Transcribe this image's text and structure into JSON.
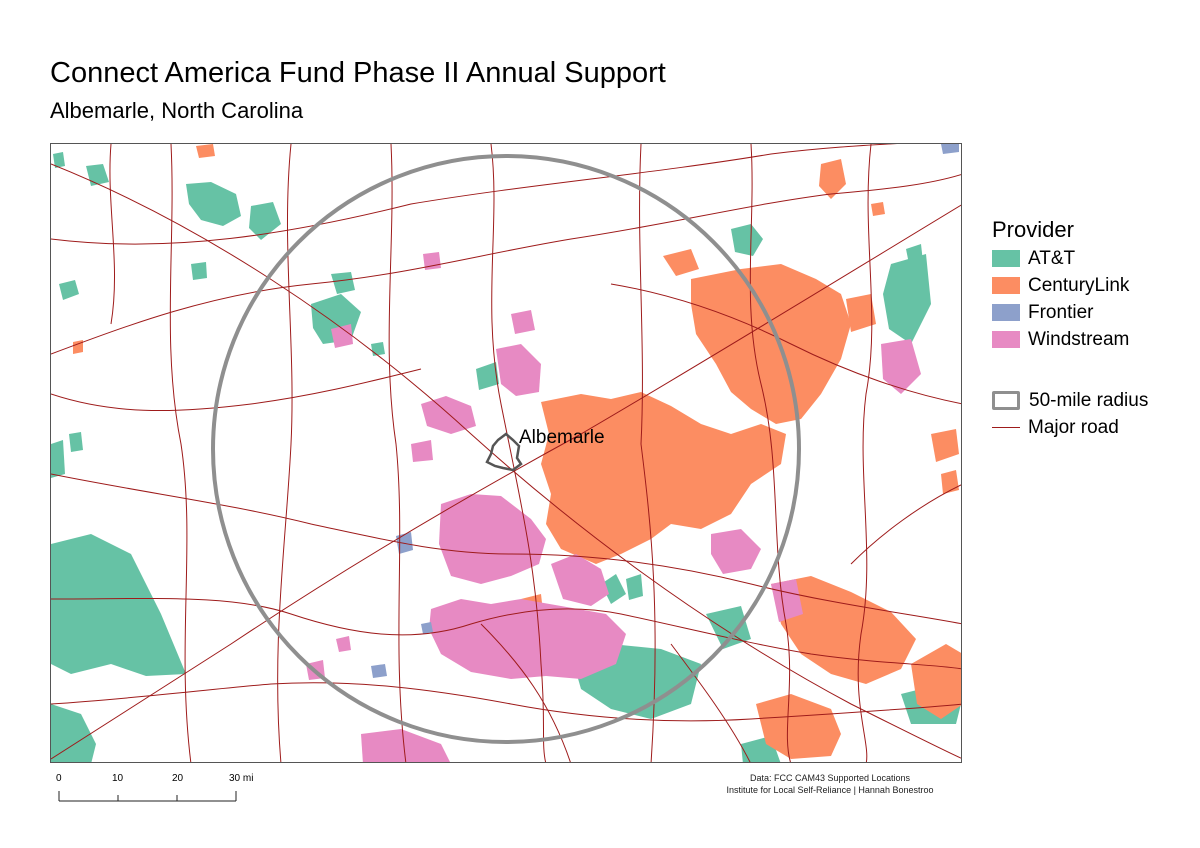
{
  "title": "Connect America Fund Phase II Annual Support",
  "subtitle": "Albemarle, North Carolina",
  "map": {
    "city_label": "Albemarle",
    "colors": {
      "att": "#66c2a5",
      "centurylink": "#fc8d62",
      "frontier": "#8da0cb",
      "windstream": "#e78ac3",
      "radius": "#8f8f8f",
      "road": "#9e1b1b",
      "city_outline": "#555555"
    }
  },
  "legend": {
    "title": "Provider",
    "providers": [
      {
        "label": "AT&T",
        "color": "#66c2a5"
      },
      {
        "label": "CenturyLink",
        "color": "#fc8d62"
      },
      {
        "label": "Frontier",
        "color": "#8da0cb"
      },
      {
        "label": "Windstream",
        "color": "#e78ac3"
      }
    ],
    "radius_label": "50-mile radius",
    "road_label": "Major road"
  },
  "scale_bar": {
    "ticks": [
      "0",
      "10",
      "20",
      "30 mi"
    ]
  },
  "credits": {
    "line1": "Data: FCC CAM43 Supported Locations",
    "line2": "Institute for Local Self-Reliance | Hannah Bonestroo"
  }
}
